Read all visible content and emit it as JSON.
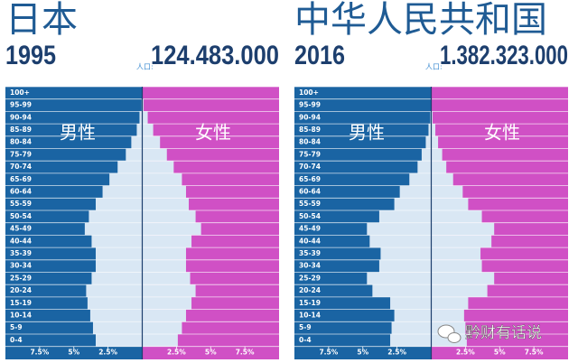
{
  "watermark": "黔财有话说",
  "chart_data": [
    {
      "type": "pyramid",
      "title": "日本",
      "year": "1995",
      "population_label": "人口:",
      "population": "124.483.000",
      "categories": [
        "0-4",
        "5-9",
        "10-14",
        "15-19",
        "20-24",
        "25-29",
        "30-34",
        "35-39",
        "40-44",
        "45-49",
        "50-54",
        "55-59",
        "60-64",
        "65-69",
        "70-74",
        "75-79",
        "80-84",
        "85-89",
        "90-94",
        "95-99",
        "100+"
      ],
      "series": [
        {
          "name": "男性",
          "color": "#1a64a3",
          "values": [
            3.4,
            3.6,
            3.8,
            4.0,
            4.1,
            3.7,
            3.4,
            3.4,
            3.7,
            4.2,
            3.9,
            3.4,
            2.9,
            2.4,
            1.8,
            1.2,
            0.8,
            0.4,
            0.2,
            0.05,
            0.0
          ]
        },
        {
          "name": "女性",
          "color": "#d050c5",
          "values": [
            2.6,
            2.9,
            3.2,
            3.6,
            3.9,
            3.5,
            3.2,
            3.2,
            3.6,
            4.3,
            3.9,
            3.4,
            3.2,
            2.9,
            2.3,
            1.8,
            1.3,
            0.8,
            0.4,
            0.1,
            0.0
          ]
        }
      ],
      "bar_color": "#d9e7f4",
      "xlim": [
        -10,
        10
      ],
      "xticks": [
        {
          "value": -7.5,
          "label": "7.5%"
        },
        {
          "value": -5,
          "label": "5%"
        },
        {
          "value": -2.5,
          "label": "2.5%"
        },
        {
          "value": 2.5,
          "label": "2.5%"
        },
        {
          "value": 5,
          "label": "5%"
        },
        {
          "value": 7.5,
          "label": "7.5%"
        }
      ]
    },
    {
      "type": "pyramid",
      "title": "中华人民共和国",
      "year": "2016",
      "population_label": "人口:",
      "population": "1.382.323.000",
      "categories": [
        "0-4",
        "5-9",
        "10-14",
        "15-19",
        "20-24",
        "25-29",
        "30-34",
        "35-39",
        "40-44",
        "45-49",
        "50-54",
        "55-59",
        "60-64",
        "65-69",
        "70-74",
        "75-79",
        "80-84",
        "85-89",
        "90-94",
        "95-99",
        "100+"
      ],
      "series": [
        {
          "name": "男性",
          "color": "#1a64a3",
          "values": [
            3.0,
            2.9,
            2.7,
            3.0,
            4.3,
            4.7,
            3.8,
            3.7,
            4.5,
            4.7,
            3.8,
            2.7,
            2.3,
            1.6,
            1.0,
            0.7,
            0.4,
            0.2,
            0.07,
            0.02,
            0.0
          ]
        },
        {
          "name": "女性",
          "color": "#d050c5",
          "values": [
            2.6,
            2.5,
            2.4,
            2.7,
            4.1,
            4.6,
            3.7,
            3.6,
            4.4,
            4.6,
            3.7,
            2.7,
            2.3,
            1.6,
            1.1,
            0.8,
            0.5,
            0.3,
            0.1,
            0.03,
            0.0
          ]
        }
      ],
      "bar_color": "#d9e7f4",
      "xlim": [
        -10,
        10
      ],
      "xticks": [
        {
          "value": -7.5,
          "label": "7.5%"
        },
        {
          "value": -5,
          "label": "5%"
        },
        {
          "value": -2.5,
          "label": "2.5%"
        },
        {
          "value": 2.5,
          "label": "2.5%"
        },
        {
          "value": 5,
          "label": "5%"
        },
        {
          "value": 7.5,
          "label": "7.5%"
        }
      ]
    }
  ]
}
